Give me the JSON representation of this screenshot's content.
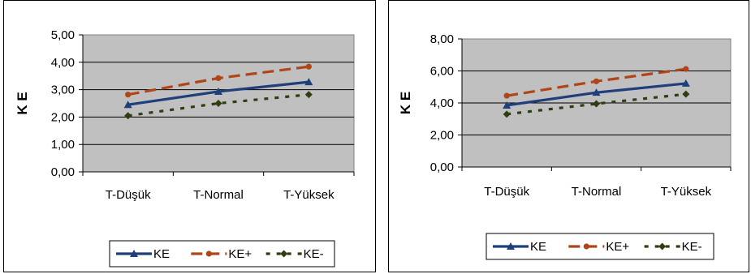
{
  "chart_data": [
    {
      "type": "line",
      "title": "",
      "xlabel": "",
      "ylabel": "K E",
      "ylim": [
        0,
        5
      ],
      "yticks": [
        "0,00",
        "1,00",
        "2,00",
        "3,00",
        "4,00",
        "5,00"
      ],
      "categories": [
        "T-Düşük",
        "T-Normal",
        "T-Yüksek"
      ],
      "grid": true,
      "legend_position": "bottom",
      "plot_background": "#c0c0c0",
      "series": [
        {
          "name": "KE",
          "values": [
            2.45,
            2.93,
            3.28
          ],
          "color": "#1f3f7a",
          "style": "solid",
          "marker": "triangle"
        },
        {
          "name": "KE+",
          "values": [
            2.82,
            3.42,
            3.84
          ],
          "color": "#b0451a",
          "style": "dashed",
          "marker": "circle"
        },
        {
          "name": "KE-",
          "values": [
            2.05,
            2.5,
            2.82
          ],
          "color": "#2e3e10",
          "style": "dotted",
          "marker": "diamond"
        }
      ]
    },
    {
      "type": "line",
      "title": "",
      "xlabel": "",
      "ylabel": "K E",
      "ylim": [
        0,
        8
      ],
      "yticks": [
        "0,00",
        "2,00",
        "4,00",
        "6,00",
        "8,00"
      ],
      "categories": [
        "T-Düşük",
        "T-Normal",
        "T-Yüksek"
      ],
      "grid": true,
      "legend_position": "bottom",
      "plot_background": "#c0c0c0",
      "series": [
        {
          "name": "KE",
          "values": [
            3.85,
            4.65,
            5.22
          ],
          "color": "#1f3f7a",
          "style": "solid",
          "marker": "triangle"
        },
        {
          "name": "KE+",
          "values": [
            4.45,
            5.35,
            6.12
          ],
          "color": "#b0451a",
          "style": "dashed",
          "marker": "circle"
        },
        {
          "name": "KE-",
          "values": [
            3.3,
            3.95,
            4.55
          ],
          "color": "#2e3e10",
          "style": "dotted",
          "marker": "diamond"
        }
      ]
    }
  ]
}
